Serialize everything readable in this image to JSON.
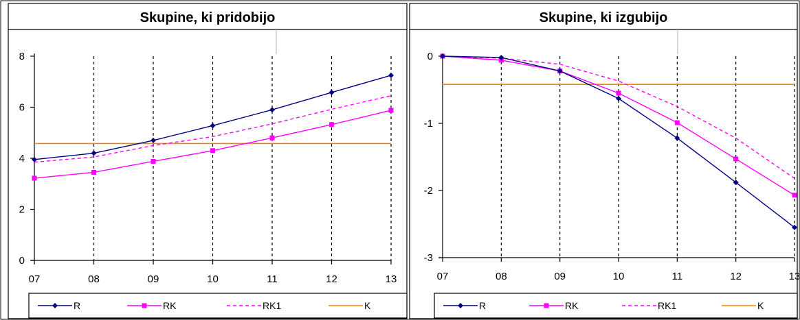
{
  "chart_data": [
    {
      "type": "line",
      "title": "Skupine, ki pridobijo",
      "categories": [
        "07",
        "08",
        "09",
        "10",
        "11",
        "12",
        "13"
      ],
      "ylim": [
        0,
        8
      ],
      "yticks": [
        "0",
        "2",
        "4",
        "6",
        "8"
      ],
      "grid": "vertical dashed",
      "legend_position": "bottom",
      "series": [
        {
          "name": "R",
          "color": "#000080",
          "style": "solid-diamond",
          "values": [
            3.95,
            4.2,
            4.7,
            5.28,
            5.9,
            6.58,
            7.25
          ]
        },
        {
          "name": "RK",
          "color": "#FF00FF",
          "style": "solid-square",
          "values": [
            3.22,
            3.45,
            3.88,
            4.3,
            4.8,
            5.32,
            5.88
          ]
        },
        {
          "name": "RK1",
          "color": "#FF00FF",
          "style": "dashed",
          "values": [
            3.85,
            4.05,
            4.5,
            4.85,
            5.35,
            5.92,
            6.45
          ]
        },
        {
          "name": "K",
          "color": "#FF8000",
          "style": "solid",
          "values": [
            4.58,
            4.58,
            4.58,
            4.58,
            4.58,
            4.58,
            4.58
          ]
        }
      ]
    },
    {
      "type": "line",
      "title": "Skupine, ki izgubijo",
      "categories": [
        "07",
        "08",
        "09",
        "10",
        "11",
        "12",
        "13"
      ],
      "ylim": [
        -3,
        0
      ],
      "yticks": [
        "-3",
        "-2",
        "-1",
        "0"
      ],
      "grid": "vertical dashed",
      "legend_position": "bottom",
      "series": [
        {
          "name": "R",
          "color": "#000080",
          "style": "solid-diamond",
          "values": [
            0,
            -0.02,
            -0.22,
            -0.63,
            -1.22,
            -1.88,
            -2.55
          ]
        },
        {
          "name": "RK",
          "color": "#FF00FF",
          "style": "solid-square",
          "values": [
            0,
            -0.06,
            -0.22,
            -0.55,
            -0.99,
            -1.53,
            -2.07
          ]
        },
        {
          "name": "RK1",
          "color": "#FF00FF",
          "style": "dashed",
          "values": [
            0,
            -0.03,
            -0.12,
            -0.37,
            -0.75,
            -1.22,
            -1.82
          ]
        },
        {
          "name": "K",
          "color": "#FF8000",
          "style": "solid",
          "values": [
            -0.42,
            -0.42,
            -0.42,
            -0.42,
            -0.42,
            -0.42,
            -0.42
          ]
        }
      ]
    }
  ]
}
